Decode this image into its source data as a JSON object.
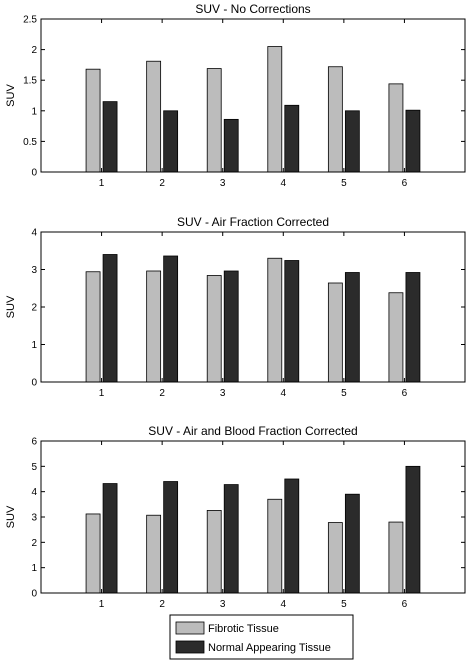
{
  "chart_data": [
    {
      "type": "bar",
      "title": "SUV - No Corrections",
      "xlabel": "",
      "ylabel": "SUV",
      "categories": [
        "1",
        "2",
        "3",
        "4",
        "5",
        "6"
      ],
      "ylim": [
        0,
        2.5
      ],
      "yticks": [
        "0",
        "0.5",
        "1",
        "1.5",
        "2",
        "2.5"
      ],
      "series": [
        {
          "name": "Fibrotic Tissue",
          "color": "#bcbcbc",
          "values": [
            1.68,
            1.81,
            1.69,
            2.05,
            1.72,
            1.44
          ]
        },
        {
          "name": "Normal Appearing Tissue",
          "color": "#2b2b2b",
          "values": [
            1.15,
            1.0,
            0.86,
            1.09,
            1.0,
            1.01
          ]
        }
      ]
    },
    {
      "type": "bar",
      "title": "SUV - Air Fraction Corrected",
      "xlabel": "",
      "ylabel": "SUV",
      "categories": [
        "1",
        "2",
        "3",
        "4",
        "5",
        "6"
      ],
      "ylim": [
        0,
        4
      ],
      "yticks": [
        "0",
        "1",
        "2",
        "3",
        "4"
      ],
      "series": [
        {
          "name": "Fibrotic Tissue",
          "color": "#bcbcbc",
          "values": [
            2.94,
            2.96,
            2.84,
            3.3,
            2.64,
            2.38
          ]
        },
        {
          "name": "Normal Appearing Tissue",
          "color": "#2b2b2b",
          "values": [
            3.4,
            3.36,
            2.96,
            3.24,
            2.92,
            2.92
          ]
        }
      ]
    },
    {
      "type": "bar",
      "title": "SUV - Air and Blood Fraction Corrected",
      "xlabel": "",
      "ylabel": "SUV",
      "categories": [
        "1",
        "2",
        "3",
        "4",
        "5",
        "6"
      ],
      "ylim": [
        0,
        6
      ],
      "yticks": [
        "0",
        "1",
        "2",
        "3",
        "4",
        "5",
        "6"
      ],
      "series": [
        {
          "name": "Fibrotic Tissue",
          "color": "#bcbcbc",
          "values": [
            3.12,
            3.07,
            3.26,
            3.7,
            2.78,
            2.8
          ]
        },
        {
          "name": "Normal Appearing Tissue",
          "color": "#2b2b2b",
          "values": [
            4.32,
            4.4,
            4.28,
            4.5,
            3.9,
            5.0
          ]
        }
      ]
    }
  ],
  "legend": {
    "placement": "bottom",
    "items": [
      {
        "label": "Fibrotic Tissue",
        "color": "#bcbcbc"
      },
      {
        "label": "Normal Appearing Tissue",
        "color": "#2b2b2b"
      }
    ]
  }
}
